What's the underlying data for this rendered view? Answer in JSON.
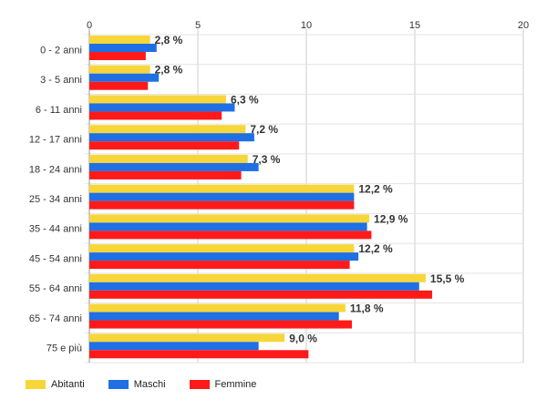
{
  "chart_data": {
    "type": "bar",
    "orientation": "horizontal",
    "title": "",
    "xlabel": "",
    "ylabel": "",
    "xlim": [
      0,
      20
    ],
    "x_ticks": [
      "0",
      "5",
      "10",
      "15",
      "20"
    ],
    "grid": true,
    "legend_position": "bottom-left",
    "categories": [
      "0 - 2 anni",
      "3 - 5 anni",
      "6 - 11 anni",
      "12 - 17 anni",
      "18 - 24 anni",
      "25 - 34 anni",
      "35 - 44 anni",
      "45 - 54 anni",
      "55 - 64 anni",
      "65 - 74 anni",
      "75 e più"
    ],
    "series": [
      {
        "name": "Abitanti",
        "color": "#f7d63a",
        "values": [
          2.8,
          2.8,
          6.3,
          7.2,
          7.3,
          12.2,
          12.9,
          12.2,
          15.5,
          11.8,
          9.0
        ]
      },
      {
        "name": "Maschi",
        "color": "#1f6fe5",
        "values": [
          3.1,
          3.2,
          6.7,
          7.6,
          7.8,
          12.2,
          12.8,
          12.4,
          15.2,
          11.5,
          7.8
        ]
      },
      {
        "name": "Femmine",
        "color": "#ff1a1a",
        "values": [
          2.6,
          2.7,
          6.1,
          6.9,
          7.0,
          12.2,
          13.0,
          12.0,
          15.8,
          12.1,
          10.1
        ]
      }
    ],
    "data_labels": [
      "2,8 %",
      "2,8 %",
      "6,3 %",
      "7,2 %",
      "7,3 %",
      "12,2 %",
      "12,9 %",
      "12,2 %",
      "15,5 %",
      "11,8 %",
      "9,0 %"
    ]
  }
}
